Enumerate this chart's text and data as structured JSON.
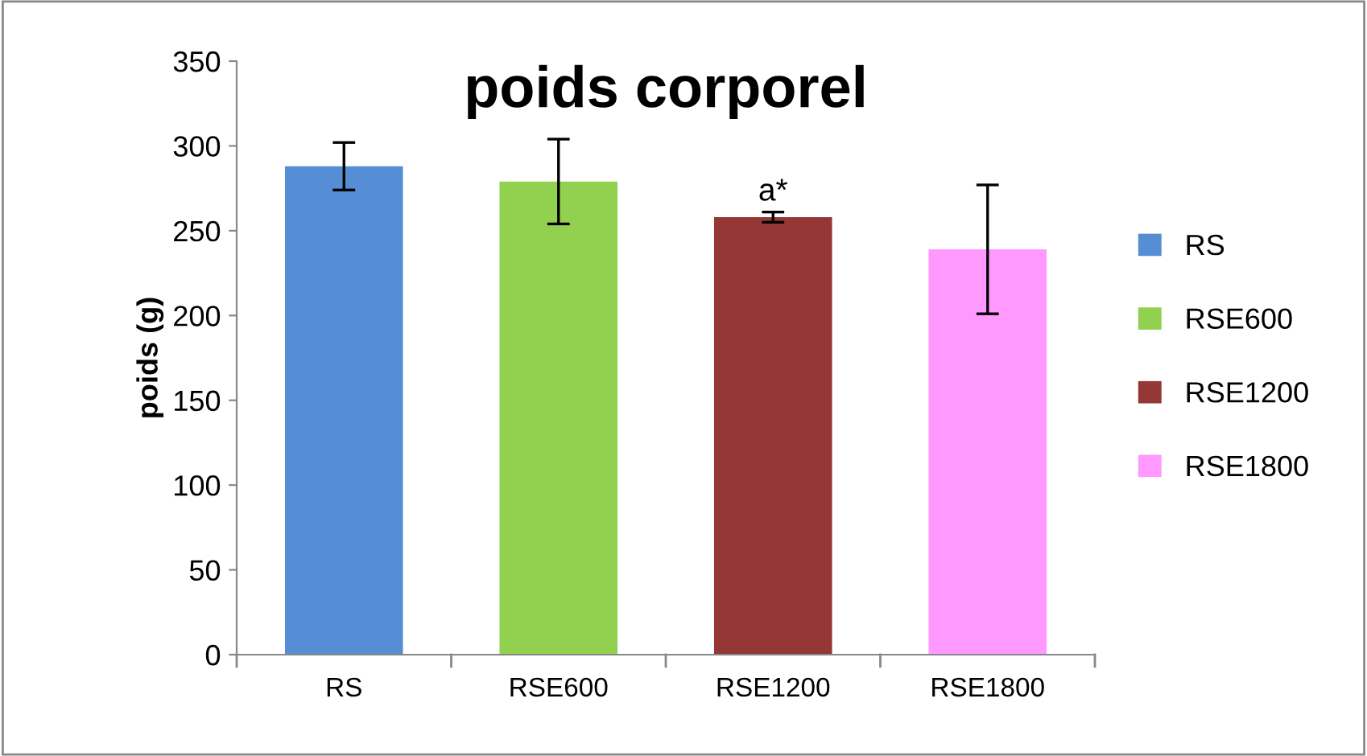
{
  "chart_data": {
    "type": "bar",
    "title": "poids corporel",
    "ylabel": "poids (g)",
    "categories": [
      "RS",
      "RSE600",
      "RSE1200",
      "RSE1800"
    ],
    "series": [
      {
        "name": "RS",
        "color": "#558ed5",
        "values": [
          288,
          null,
          null,
          null
        ],
        "errors": [
          14,
          null,
          null,
          null
        ]
      },
      {
        "name": "RSE600",
        "color": "#92d050",
        "values": [
          null,
          279,
          null,
          null
        ],
        "errors": [
          null,
          25,
          null,
          null
        ]
      },
      {
        "name": "RSE1200",
        "color": "#953735",
        "values": [
          null,
          null,
          258,
          null
        ],
        "errors": [
          null,
          null,
          3,
          null
        ]
      },
      {
        "name": "RSE1800",
        "color": "#ff99ff",
        "values": [
          null,
          null,
          null,
          239
        ],
        "errors": [
          null,
          null,
          null,
          38
        ]
      }
    ],
    "ylim": [
      0,
      350
    ],
    "yticks": [
      0,
      50,
      100,
      150,
      200,
      250,
      300,
      350
    ],
    "annotations": [
      {
        "text": "a*",
        "x": "RSE1200",
        "y": 264
      }
    ],
    "grid": false,
    "legend": "right"
  }
}
